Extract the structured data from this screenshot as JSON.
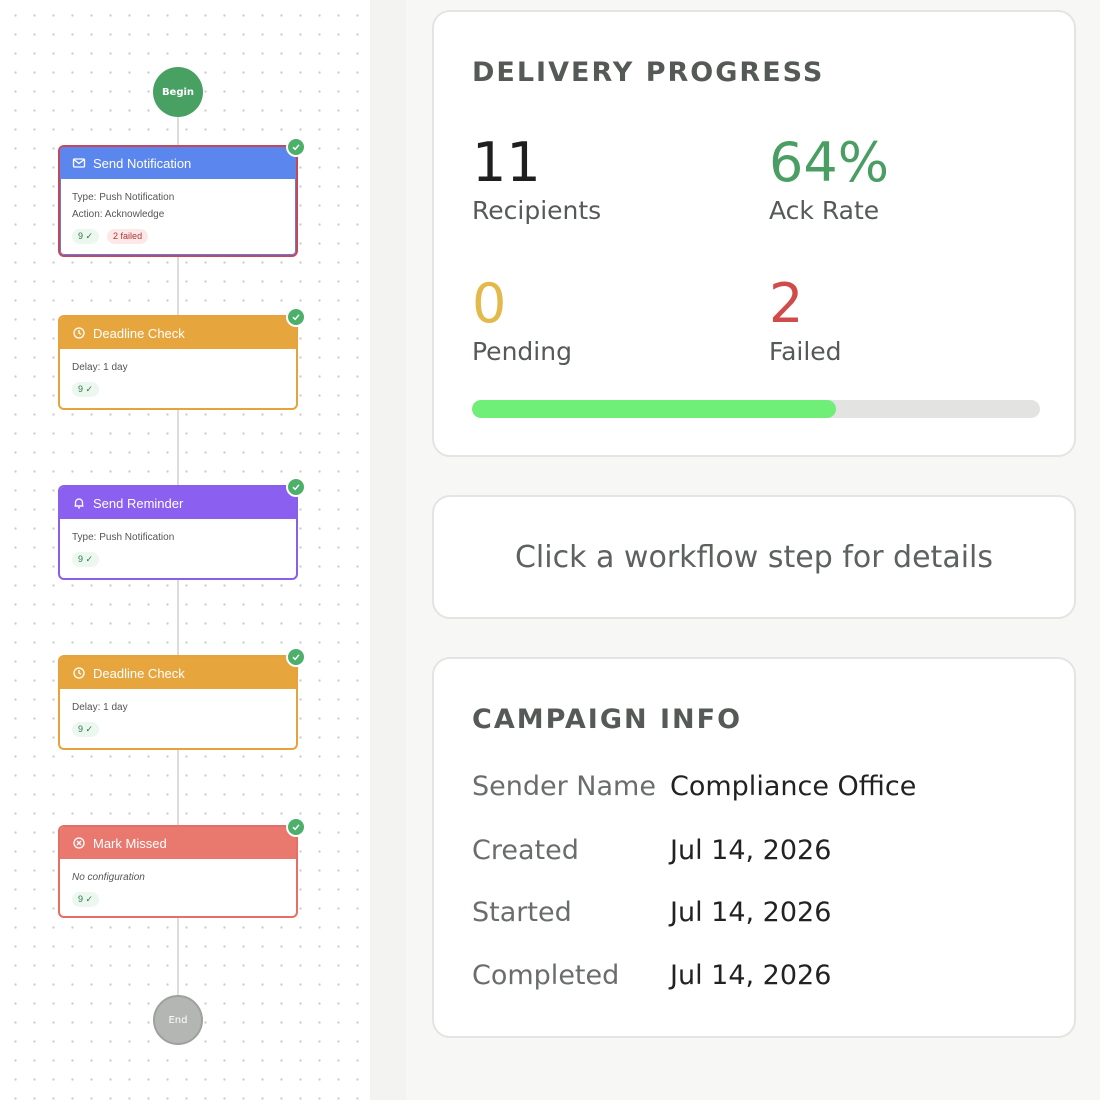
{
  "workflow": {
    "begin_label": "Begin",
    "end_label": "End",
    "nodes": [
      {
        "title": "Send Notification",
        "icon": "mail-icon",
        "lines": [
          "Type: Push Notification",
          "Action: Acknowledge"
        ],
        "ok_badge": "9 ✓",
        "fail_badge": "2 failed",
        "status": "complete",
        "color": "#5b86ee"
      },
      {
        "title": "Deadline Check",
        "icon": "clock-icon",
        "lines": [
          "Delay: 1 day"
        ],
        "ok_badge": "9 ✓",
        "status": "complete",
        "color": "#e7a53e"
      },
      {
        "title": "Send Reminder",
        "icon": "bell-icon",
        "lines": [
          "Type: Push Notification"
        ],
        "ok_badge": "9 ✓",
        "status": "complete",
        "color": "#8b5ff0"
      },
      {
        "title": "Deadline Check",
        "icon": "clock-icon",
        "lines": [
          "Delay: 1 day"
        ],
        "ok_badge": "9 ✓",
        "status": "complete",
        "color": "#e7a53e"
      },
      {
        "title": "Mark Missed",
        "icon": "x-circle-icon",
        "lines": [
          "No configuration"
        ],
        "ok_badge": "9 ✓",
        "status": "complete",
        "color": "#e9786f"
      }
    ]
  },
  "progress": {
    "title": "DELIVERY PROGRESS",
    "recipients": {
      "value": "11",
      "label": "Recipients",
      "color": "#1f1f1f"
    },
    "ack_rate": {
      "value": "64%",
      "label": "Ack Rate",
      "color": "#4a9e63"
    },
    "pending": {
      "value": "0",
      "label": "Pending",
      "color": "#e3b94b"
    },
    "failed": {
      "value": "2",
      "label": "Failed",
      "color": "#d24b4b"
    },
    "bar_fraction": 0.64,
    "bar_color": "#6fef78"
  },
  "hint": {
    "text": "Click a workflow step for details"
  },
  "campaign": {
    "title": "CAMPAIGN INFO",
    "rows": [
      {
        "key": "Sender Name",
        "value": "Compliance Office"
      },
      {
        "key": "Created",
        "value": "Jul 14, 2026"
      },
      {
        "key": "Started",
        "value": "Jul 14, 2026"
      },
      {
        "key": "Completed",
        "value": "Jul 14, 2026"
      }
    ]
  }
}
